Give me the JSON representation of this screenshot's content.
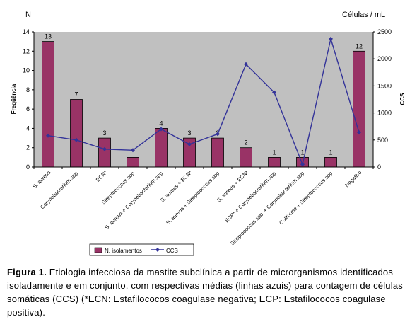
{
  "chart_data": {
    "type": "bar",
    "left_axis_unit": "N",
    "right_axis_unit": "Células / mL",
    "ylabel": "Freqüência",
    "y2label": "CCS",
    "ylim": [
      0,
      14
    ],
    "y2lim": [
      0,
      2500
    ],
    "yticks": [
      "0",
      "2",
      "4",
      "6",
      "8",
      "10",
      "12",
      "14"
    ],
    "y2ticks": [
      "0",
      "500",
      "1000",
      "1500",
      "2000",
      "2500"
    ],
    "categories": [
      "S. aureus",
      "Corynebacterium spp.",
      "ECN*",
      "Streptococcus spp.",
      "S. aureus + Corynebacterium spp.",
      "S. aureus + ECN*",
      "S. aureus + Streptococcus spp.",
      "S. aureus + ECN*",
      "ECP* + Corynebacterium spp.",
      "Streptococcus spp. + Corynebacterium spp.",
      "Coliforme + Streptococcus spp.",
      "Negativo"
    ],
    "series": [
      {
        "name": "N. isolamentos",
        "type": "bar",
        "axis": "left",
        "color": "#993366",
        "values": [
          13,
          7,
          3,
          1,
          4,
          3,
          3,
          2,
          1,
          1,
          1,
          12
        ],
        "labels": [
          "13",
          "7",
          "3",
          "",
          "4",
          "3",
          "3",
          "2",
          "1",
          "1",
          "1",
          "12"
        ]
      },
      {
        "name": "CCS",
        "type": "line",
        "axis": "right",
        "color": "#333399",
        "values": [
          580,
          500,
          330,
          310,
          700,
          420,
          610,
          1900,
          1380,
          50,
          2370,
          640
        ]
      }
    ],
    "grid": false,
    "plot_background": "#c0c0c0",
    "legend_position": "bottom"
  },
  "caption": {
    "label": "Figura 1.",
    "text": " Etiologia infecciosa da mastite subclínica a partir de microrganismos identificados isoladamente e em conjunto, com respectivas médias (linhas azuis) para contagem de células somáticas (CCS) (*ECN: Estafilococos coagulase negativa; ECP: Estafilococos coagulase positiva)."
  }
}
